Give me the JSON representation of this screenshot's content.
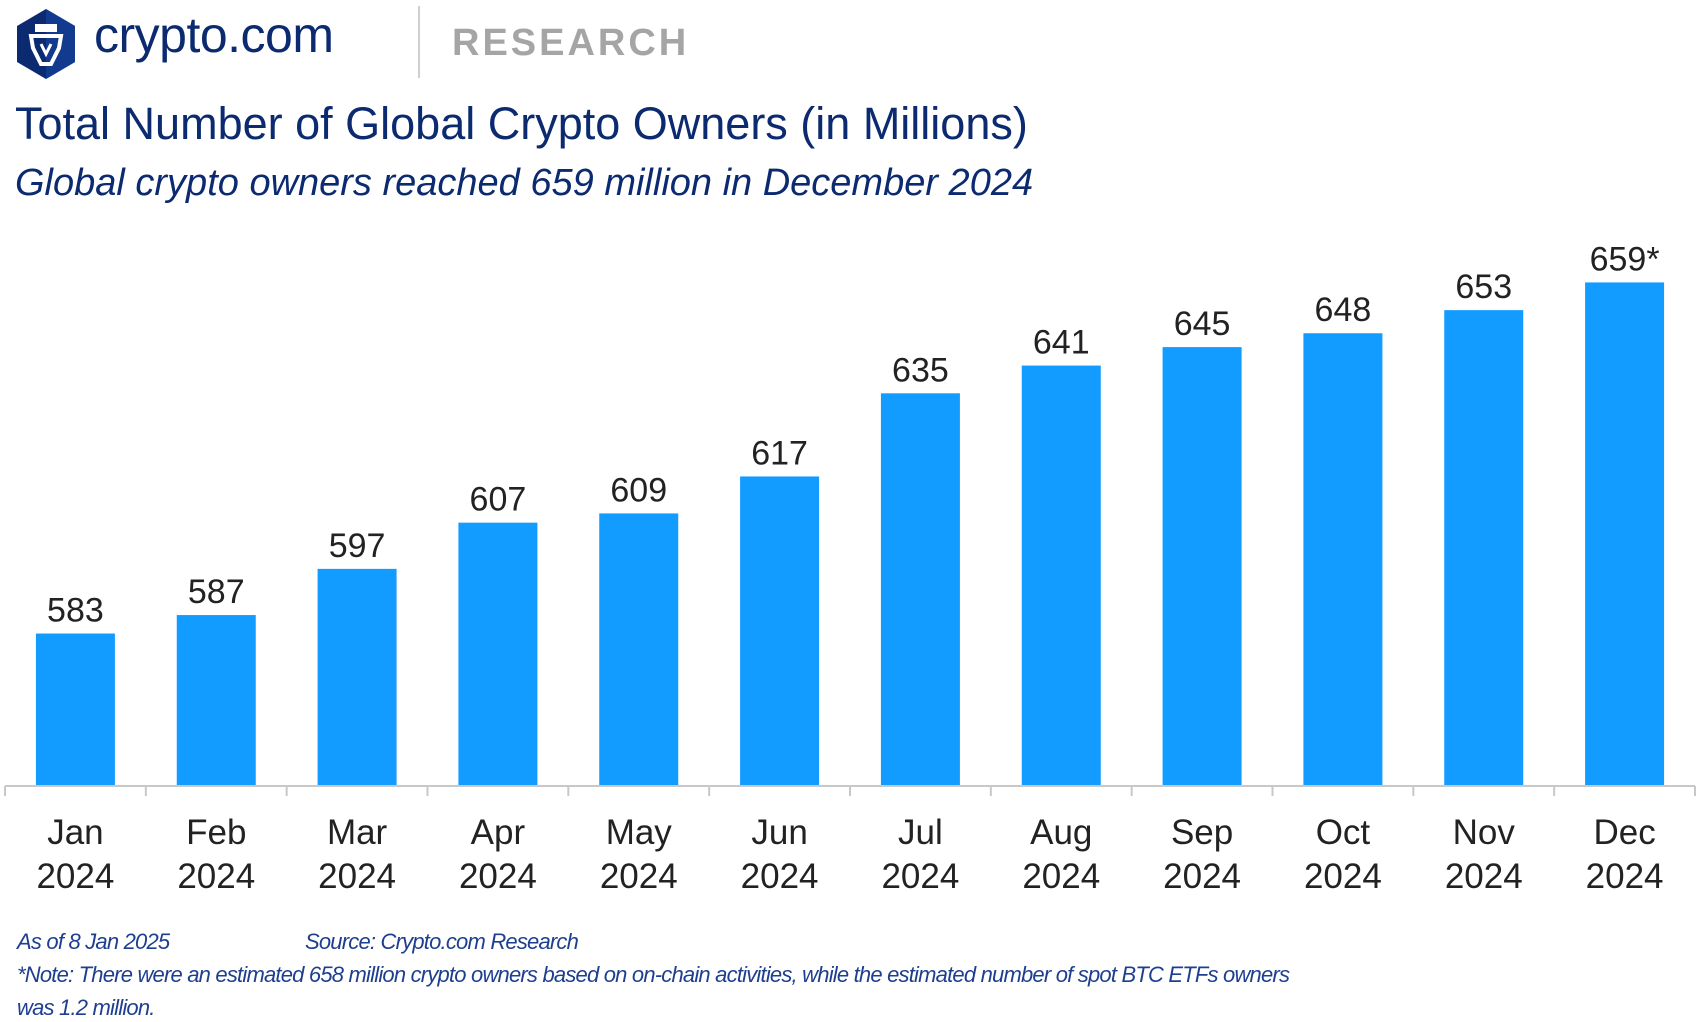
{
  "header": {
    "brand": "crypto.com",
    "section": "RESEARCH",
    "logo_icon": "crypto-com-lion-shield"
  },
  "chart_data": {
    "type": "bar",
    "title": "Total Number of Global Crypto Owners (in Millions)",
    "subtitle": "Global crypto owners reached 659 million in December 2024",
    "categories": [
      [
        "Jan",
        "2024"
      ],
      [
        "Feb",
        "2024"
      ],
      [
        "Mar",
        "2024"
      ],
      [
        "Apr",
        "2024"
      ],
      [
        "May",
        "2024"
      ],
      [
        "Jun",
        "2024"
      ],
      [
        "Jul",
        "2024"
      ],
      [
        "Aug",
        "2024"
      ],
      [
        "Sep",
        "2024"
      ],
      [
        "Oct",
        "2024"
      ],
      [
        "Nov",
        "2024"
      ],
      [
        "Dec",
        "2024"
      ]
    ],
    "values": [
      583,
      587,
      597,
      607,
      609,
      617,
      635,
      641,
      645,
      648,
      653,
      659
    ],
    "data_labels": [
      "583",
      "587",
      "597",
      "607",
      "609",
      "617",
      "635",
      "641",
      "645",
      "648",
      "653",
      "659*"
    ],
    "ylim": [
      550,
      665
    ],
    "xlabel": "",
    "ylabel": "",
    "grid": false,
    "bar_color": "#129cff"
  },
  "footer": {
    "as_of": "As of 8 Jan 2025",
    "source": "Source: Crypto.com Research",
    "note_line1": "*Note: There were an estimated 658 million crypto owners based on on-chain activities, while the estimated number of spot BTC ETFs owners",
    "note_line2": "was 1.2 million."
  },
  "colors": {
    "title": "#0b2a6f",
    "bar": "#129cff",
    "axis": "#c8c8c8"
  }
}
